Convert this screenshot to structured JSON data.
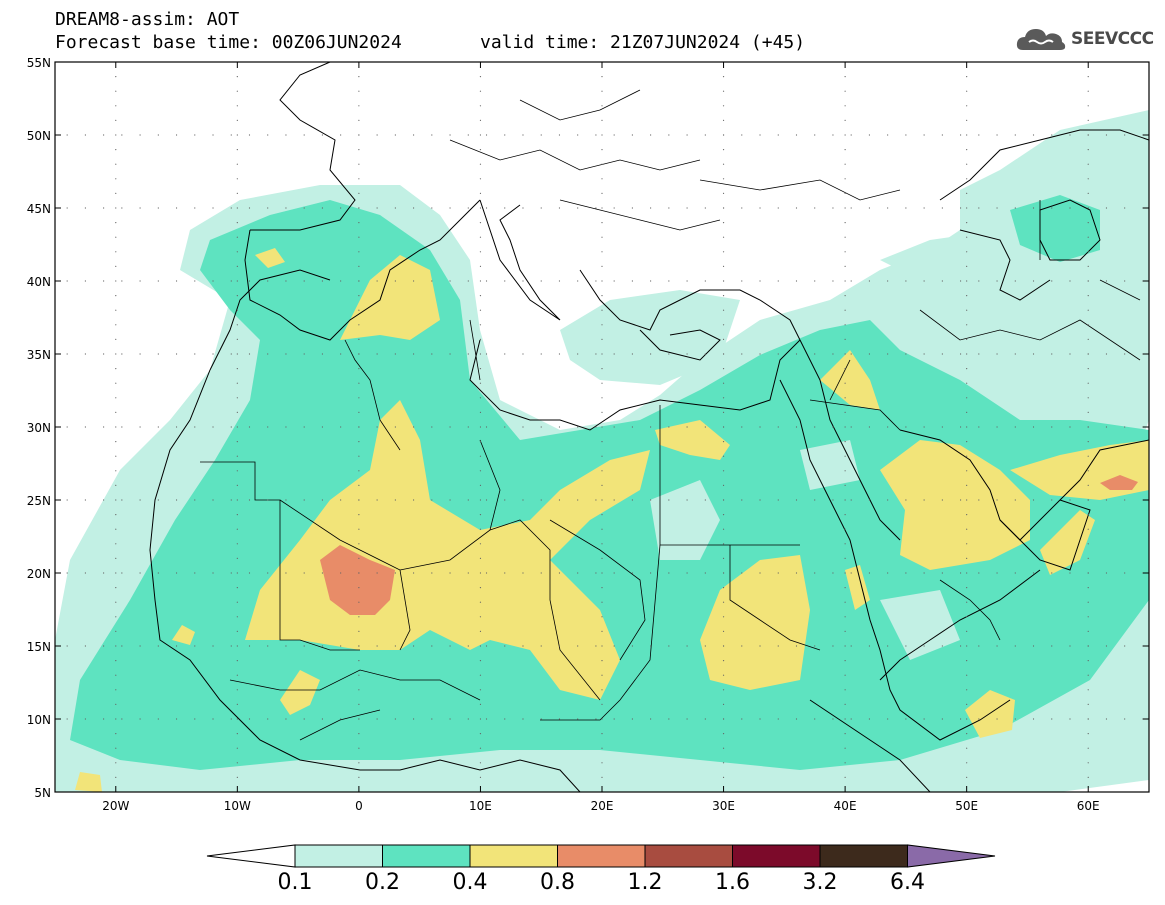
{
  "header": {
    "title": "DREAM8-assim: AOT",
    "base_time": "Forecast base time: 00Z06JUN2024",
    "valid_time": "valid time: 21Z07JUN2024 (+45)"
  },
  "logo": {
    "icon": "cloud-icon",
    "text": "SEEVCCC"
  },
  "map": {
    "lat_labels": [
      "55N",
      "50N",
      "45N",
      "40N",
      "35N",
      "30N",
      "25N",
      "20N",
      "15N",
      "10N",
      "5N"
    ],
    "lon_labels": [
      "20W",
      "10W",
      "0",
      "10E",
      "20E",
      "30E",
      "40E",
      "50E",
      "60E"
    ],
    "lon_range": [
      -25,
      65
    ],
    "lat_range": [
      5,
      55
    ]
  },
  "colorbar": {
    "labels": [
      "0.1",
      "0.2",
      "0.4",
      "0.8",
      "1.2",
      "1.6",
      "3.2",
      "6.4"
    ],
    "colors": [
      "#ffffff",
      "#c2f0e4",
      "#5ee3c0",
      "#f2e479",
      "#e88c68",
      "#a84c40",
      "#7c0a2a",
      "#3d2a1c",
      "#8a6aa8"
    ]
  }
}
